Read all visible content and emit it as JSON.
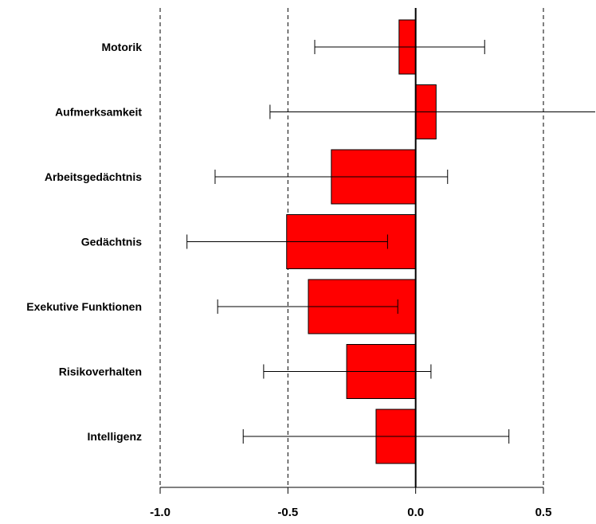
{
  "chart_data": {
    "type": "bar",
    "orientation": "horizontal",
    "categories": [
      "Motorik",
      "Aufmerksamkeit",
      "Arbeitsgedächtnis",
      "Gedächtnis",
      "Exekutive Funktionen",
      "Risikoverhalten",
      "Intelligenz"
    ],
    "values": [
      -0.065,
      0.08,
      -0.33,
      -0.505,
      -0.42,
      -0.27,
      -0.155
    ],
    "error_low": [
      -0.395,
      -0.57,
      -0.785,
      -0.895,
      -0.775,
      -0.595,
      -0.675
    ],
    "error_high": [
      0.27,
      0.84,
      0.125,
      -0.11,
      -0.07,
      0.06,
      0.365
    ],
    "xlim": [
      -1.0,
      0.5
    ],
    "xticks": [
      -1.0,
      -0.5,
      0.0,
      0.5
    ],
    "xtick_labels": [
      "-1.0",
      "-0.5",
      "0.0",
      "0.5"
    ],
    "gridlines": [
      -1.0,
      -0.5,
      0.5
    ],
    "grid_style": "dashed",
    "bar_color": "#ff0000",
    "title": "",
    "xlabel": "",
    "ylabel": ""
  }
}
